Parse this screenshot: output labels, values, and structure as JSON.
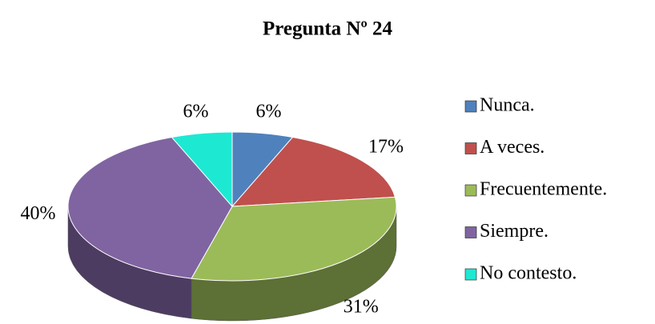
{
  "chart_data": {
    "type": "pie",
    "title": "Pregunta Nº 24",
    "categories": [
      "Nunca.",
      "A veces.",
      "Frecuentemente.",
      "Siempre.",
      "No contesto."
    ],
    "values": [
      6,
      17,
      31,
      40,
      6
    ],
    "value_labels": [
      "6%",
      "17%",
      "31%",
      "40%",
      "6%"
    ],
    "colors": [
      "#4f81bd",
      "#c0504d",
      "#9bbb59",
      "#8064a2",
      "#1de9d2"
    ]
  }
}
